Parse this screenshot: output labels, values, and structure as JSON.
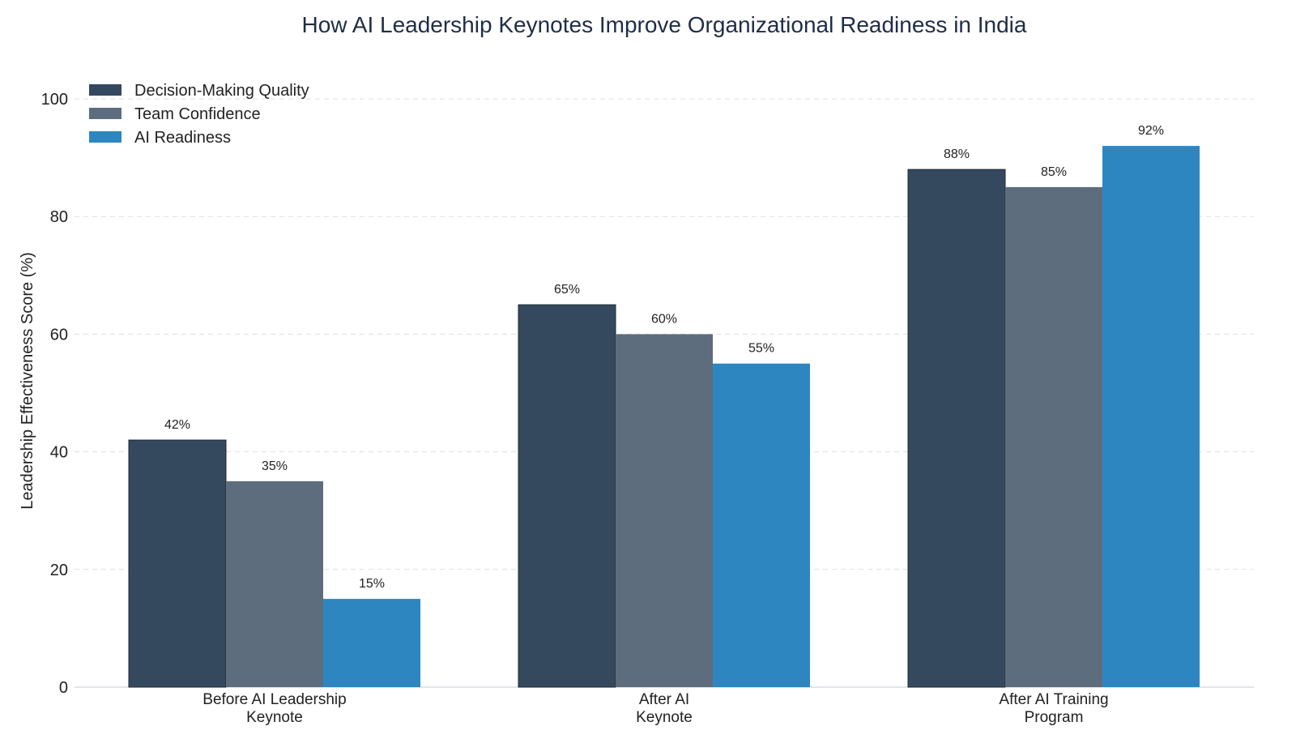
{
  "chart_data": {
    "type": "bar",
    "title": "How AI Leadership Keynotes Improve Organizational Readiness in India",
    "xlabel": "",
    "ylabel": "Leadership Effectiveness Score (%)",
    "ylim": [
      0,
      100
    ],
    "yticks": [
      "0",
      "20",
      "40",
      "60",
      "80",
      "100"
    ],
    "grid": true,
    "legend_position": "top-left",
    "categories": [
      [
        "Before AI Leadership",
        "Keynote"
      ],
      [
        "After AI",
        "Keynote"
      ],
      [
        "After AI Training",
        "Program"
      ]
    ],
    "series": [
      {
        "name": "Decision-Making Quality",
        "color": "#34495e",
        "values": [
          42,
          65,
          88
        ],
        "labels": [
          "42%",
          "65%",
          "88%"
        ]
      },
      {
        "name": "Team Confidence",
        "color": "#5d6d7e",
        "values": [
          35,
          60,
          85
        ],
        "labels": [
          "35%",
          "60%",
          "85%"
        ]
      },
      {
        "name": "AI Readiness",
        "color": "#2e86c1",
        "values": [
          15,
          55,
          92
        ],
        "labels": [
          "15%",
          "55%",
          "92%"
        ]
      }
    ]
  }
}
